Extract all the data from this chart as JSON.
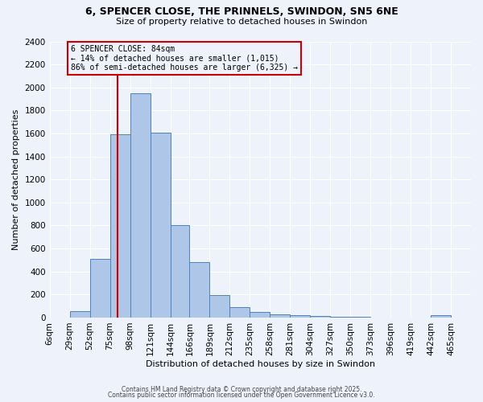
{
  "title": "6, SPENCER CLOSE, THE PRINNELS, SWINDON, SN5 6NE",
  "subtitle": "Size of property relative to detached houses in Swindon",
  "xlabel": "Distribution of detached houses by size in Swindon",
  "ylabel": "Number of detached properties",
  "footnote1": "Contains HM Land Registry data © Crown copyright and database right 2025.",
  "footnote2": "Contains public sector information licensed under the Open Government Licence v3.0.",
  "annotation_title": "6 SPENCER CLOSE: 84sqm",
  "annotation_line1": "← 14% of detached houses are smaller (1,015)",
  "annotation_line2": "86% of semi-detached houses are larger (6,325) →",
  "property_size": 84,
  "bar_color": "#aec6e8",
  "bar_edge_color": "#4f81bd",
  "red_line_color": "#cc0000",
  "background_color": "#eef2fb",
  "grid_color": "#ffffff",
  "annotation_box_color": "#cc0000",
  "categories": [
    "6sqm",
    "29sqm",
    "52sqm",
    "75sqm",
    "98sqm",
    "121sqm",
    "144sqm",
    "166sqm",
    "189sqm",
    "212sqm",
    "235sqm",
    "258sqm",
    "281sqm",
    "304sqm",
    "327sqm",
    "350sqm",
    "373sqm",
    "396sqm",
    "419sqm",
    "442sqm",
    "465sqm"
  ],
  "bin_edges": [
    6,
    29,
    52,
    75,
    98,
    121,
    144,
    166,
    189,
    212,
    235,
    258,
    281,
    304,
    327,
    350,
    373,
    396,
    419,
    442,
    465,
    488
  ],
  "values": [
    0,
    55,
    510,
    1590,
    1950,
    1610,
    800,
    480,
    195,
    90,
    48,
    30,
    20,
    12,
    5,
    10,
    0,
    0,
    0,
    20,
    0
  ],
  "ylim": [
    0,
    2400
  ],
  "yticks": [
    0,
    200,
    400,
    600,
    800,
    1000,
    1200,
    1400,
    1600,
    1800,
    2000,
    2200,
    2400
  ]
}
